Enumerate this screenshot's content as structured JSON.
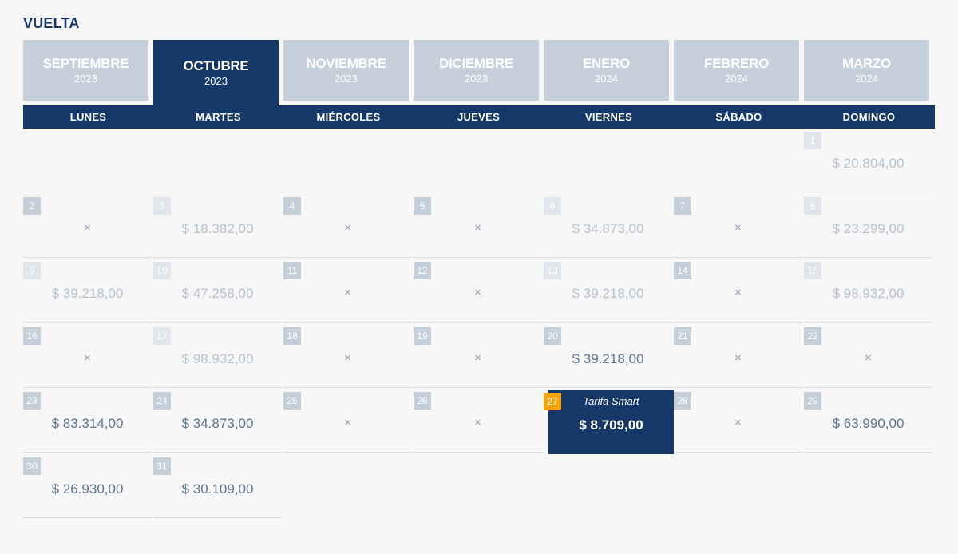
{
  "section_title": "VUELTA",
  "months": [
    {
      "name": "SEPTIEMBRE",
      "year": "2023",
      "active": false
    },
    {
      "name": "OCTUBRE",
      "year": "2023",
      "active": true
    },
    {
      "name": "NOVIEMBRE",
      "year": "2023",
      "active": false
    },
    {
      "name": "DICIEMBRE",
      "year": "2023",
      "active": false
    },
    {
      "name": "ENERO",
      "year": "2024",
      "active": false
    },
    {
      "name": "FEBRERO",
      "year": "2024",
      "active": false
    },
    {
      "name": "MARZO",
      "year": "2024",
      "active": false
    }
  ],
  "weekdays": [
    "LUNES",
    "MARTES",
    "MIÉRCOLES",
    "JUEVES",
    "VIERNES",
    "SÁBADO",
    "DOMINGO"
  ],
  "no_flight_symbol": "×",
  "smart_label": "Tarifa Smart",
  "colors": {
    "accent": "#163869",
    "selected_day_badge": "#f5a50b",
    "tab_inactive": "#c5d0db"
  },
  "days": [
    {
      "day": "1",
      "price": "$ 20.804,00",
      "dim": true
    },
    {
      "day": "2",
      "price": null,
      "dim": false
    },
    {
      "day": "3",
      "price": "$ 18.382,00",
      "dim": true
    },
    {
      "day": "4",
      "price": null,
      "dim": false
    },
    {
      "day": "5",
      "price": null,
      "dim": false
    },
    {
      "day": "6",
      "price": "$ 34.873,00",
      "dim": true
    },
    {
      "day": "7",
      "price": null,
      "dim": false
    },
    {
      "day": "8",
      "price": "$ 23.299,00",
      "dim": true
    },
    {
      "day": "9",
      "price": "$ 39.218,00",
      "dim": true
    },
    {
      "day": "10",
      "price": "$ 47.258,00",
      "dim": true
    },
    {
      "day": "11",
      "price": null,
      "dim": false
    },
    {
      "day": "12",
      "price": null,
      "dim": false
    },
    {
      "day": "13",
      "price": "$ 39.218,00",
      "dim": true
    },
    {
      "day": "14",
      "price": null,
      "dim": false
    },
    {
      "day": "15",
      "price": "$ 98.932,00",
      "dim": true
    },
    {
      "day": "16",
      "price": null,
      "dim": false
    },
    {
      "day": "17",
      "price": "$ 98.932,00",
      "dim": true
    },
    {
      "day": "18",
      "price": null,
      "dim": false
    },
    {
      "day": "19",
      "price": null,
      "dim": false
    },
    {
      "day": "20",
      "price": "$ 39.218,00",
      "dim": false
    },
    {
      "day": "21",
      "price": null,
      "dim": false
    },
    {
      "day": "22",
      "price": null,
      "dim": false
    },
    {
      "day": "23",
      "price": "$ 83.314,00",
      "dim": false
    },
    {
      "day": "24",
      "price": "$ 34.873,00",
      "dim": false
    },
    {
      "day": "25",
      "price": null,
      "dim": false
    },
    {
      "day": "26",
      "price": null,
      "dim": false
    },
    {
      "day": "27",
      "price": "$ 8.709,00",
      "dim": false,
      "selected": true
    },
    {
      "day": "28",
      "price": null,
      "dim": false
    },
    {
      "day": "29",
      "price": "$ 63.990,00",
      "dim": false
    },
    {
      "day": "30",
      "price": "$ 26.930,00",
      "dim": false
    },
    {
      "day": "31",
      "price": "$ 30.109,00",
      "dim": false
    }
  ]
}
